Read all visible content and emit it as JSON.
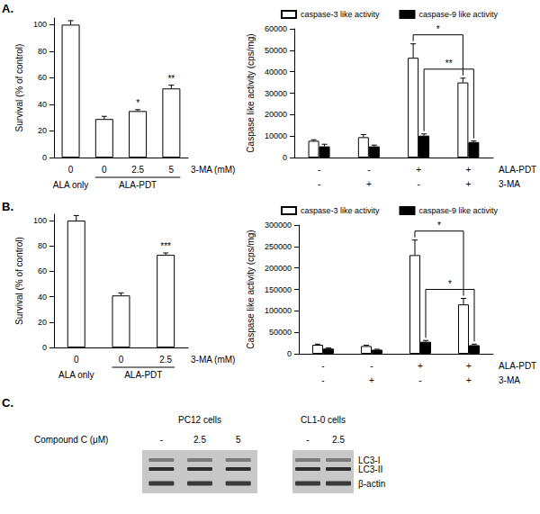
{
  "panel_labels": [
    "A.",
    "B.",
    "C."
  ],
  "chart_data": [
    {
      "type": "bar",
      "y_label": "Survival (% of control)",
      "x_label": "3-MA (mM)",
      "categories": [
        "0",
        "0",
        "2.5",
        "5"
      ],
      "group_labels": [
        "ALA only",
        "ALA-PDT",
        "ALA-PDT",
        "ALA-PDT"
      ],
      "values": [
        100,
        29,
        35,
        52
      ],
      "errors": [
        3,
        2,
        1,
        2.5
      ],
      "significance": [
        null,
        null,
        "*",
        "**"
      ],
      "color": "#ffffff",
      "ylim": [
        0,
        105
      ],
      "yticks": [
        0,
        20,
        40,
        60,
        80,
        100
      ],
      "grid": false
    },
    {
      "type": "bar",
      "y_label": "Caspase like activity (cps/mg)",
      "condition_rows": [
        {
          "name": "ALA-PDT",
          "values": [
            "-",
            "-",
            "+",
            "+"
          ]
        },
        {
          "name": "3-MA",
          "values": [
            "-",
            "+",
            "-",
            "+"
          ]
        }
      ],
      "series": [
        {
          "name": "caspase-3 like activity",
          "color": "#ffffff",
          "values": [
            7800,
            9500,
            46500,
            35000
          ],
          "errors": [
            500,
            1200,
            6500,
            2000
          ]
        },
        {
          "name": "caspase-9 like activity",
          "color": "#000000",
          "values": [
            5200,
            5200,
            10200,
            7200
          ],
          "errors": [
            1000,
            600,
            800,
            500
          ]
        }
      ],
      "brackets": [
        {
          "series": "caspase-3 like activity",
          "from": 2,
          "to": 3,
          "text": "*"
        },
        {
          "series": "caspase-9 like activity",
          "from": 2,
          "to": 3,
          "text": "**"
        }
      ],
      "ylim": [
        0,
        60000
      ],
      "yticks": [
        0,
        10000,
        20000,
        30000,
        40000,
        50000,
        60000
      ],
      "legend": "top",
      "grid": false
    },
    {
      "type": "bar",
      "y_label": "Survival (% of control)",
      "x_label": "3-MA (mM)",
      "categories": [
        "0",
        "0",
        "2.5"
      ],
      "group_labels": [
        "ALA only",
        "ALA-PDT",
        "ALA-PDT"
      ],
      "values": [
        100,
        41,
        73
      ],
      "errors": [
        4,
        2,
        1.5
      ],
      "significance": [
        null,
        null,
        "***"
      ],
      "color": "#ffffff",
      "ylim": [
        0,
        105
      ],
      "yticks": [
        0,
        20,
        40,
        60,
        80,
        100
      ],
      "grid": false
    },
    {
      "type": "bar",
      "y_label": "Caspase like activity (cps/mg)",
      "condition_rows": [
        {
          "name": "ALA-PDT",
          "values": [
            "-",
            "-",
            "+",
            "+"
          ]
        },
        {
          "name": "3-MA",
          "values": [
            "-",
            "+",
            "-",
            "+"
          ]
        }
      ],
      "series": [
        {
          "name": "caspase-3 like activity",
          "color": "#ffffff",
          "values": [
            21000,
            18000,
            230000,
            115000
          ],
          "errors": [
            1500,
            2000,
            35000,
            14000
          ]
        },
        {
          "name": "caspase-9 like activity",
          "color": "#000000",
          "values": [
            12000,
            9500,
            28000,
            20000
          ],
          "errors": [
            1500,
            1000,
            3000,
            2500
          ]
        }
      ],
      "brackets": [
        {
          "series": "caspase-3 like activity",
          "from": 2,
          "to": 3,
          "text": "*"
        },
        {
          "series": "caspase-9 like activity",
          "from": 2,
          "to": 3,
          "text": "*"
        }
      ],
      "ylim": [
        0,
        300000
      ],
      "yticks": [
        0,
        50000,
        100000,
        150000,
        200000,
        250000,
        300000
      ],
      "legend": "top",
      "grid": false
    }
  ],
  "blot": {
    "treatment_label": "Compound C (μM)",
    "groups": [
      {
        "label": "PC12 cells",
        "lanes": [
          "-",
          "2.5",
          "5"
        ]
      },
      {
        "label": "CL1-0 cells",
        "lanes": [
          "-",
          "2.5"
        ]
      }
    ],
    "rows": [
      "LC3-I",
      "LC3-II",
      "β-actin"
    ]
  }
}
